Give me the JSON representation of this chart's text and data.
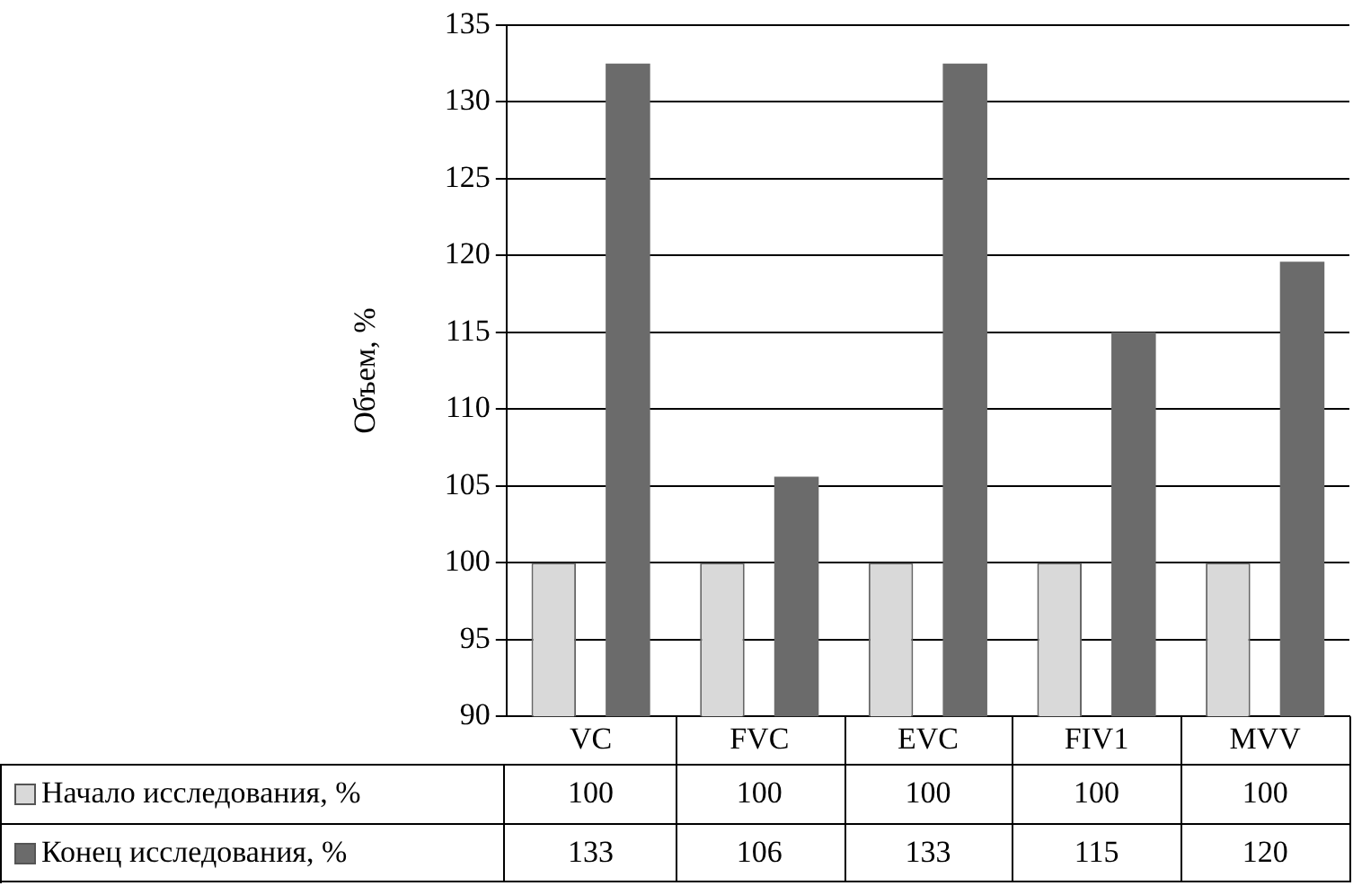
{
  "chart_data": {
    "type": "bar",
    "ylabel": "Объем, %",
    "categories": [
      "VC",
      "FVC",
      "EVC",
      "FIV1",
      "MVV"
    ],
    "series": [
      {
        "name": "Начало исследования, %",
        "color": "#d9d9d9",
        "values": [
          100,
          100,
          100,
          100,
          100
        ],
        "value_labels": [
          "100",
          "100",
          "100",
          "100",
          "100"
        ]
      },
      {
        "name": "Конец исследования, %",
        "color": "#6b6b6b",
        "values": [
          132.5,
          105.6,
          132.5,
          115,
          119.6
        ],
        "value_labels": [
          "133",
          "106",
          "133",
          "115",
          "120"
        ]
      }
    ],
    "ylim": [
      90,
      135
    ],
    "yticks": [
      90,
      95,
      100,
      105,
      110,
      115,
      120,
      125,
      130,
      135
    ],
    "grid": "y",
    "legend": "bottom"
  }
}
